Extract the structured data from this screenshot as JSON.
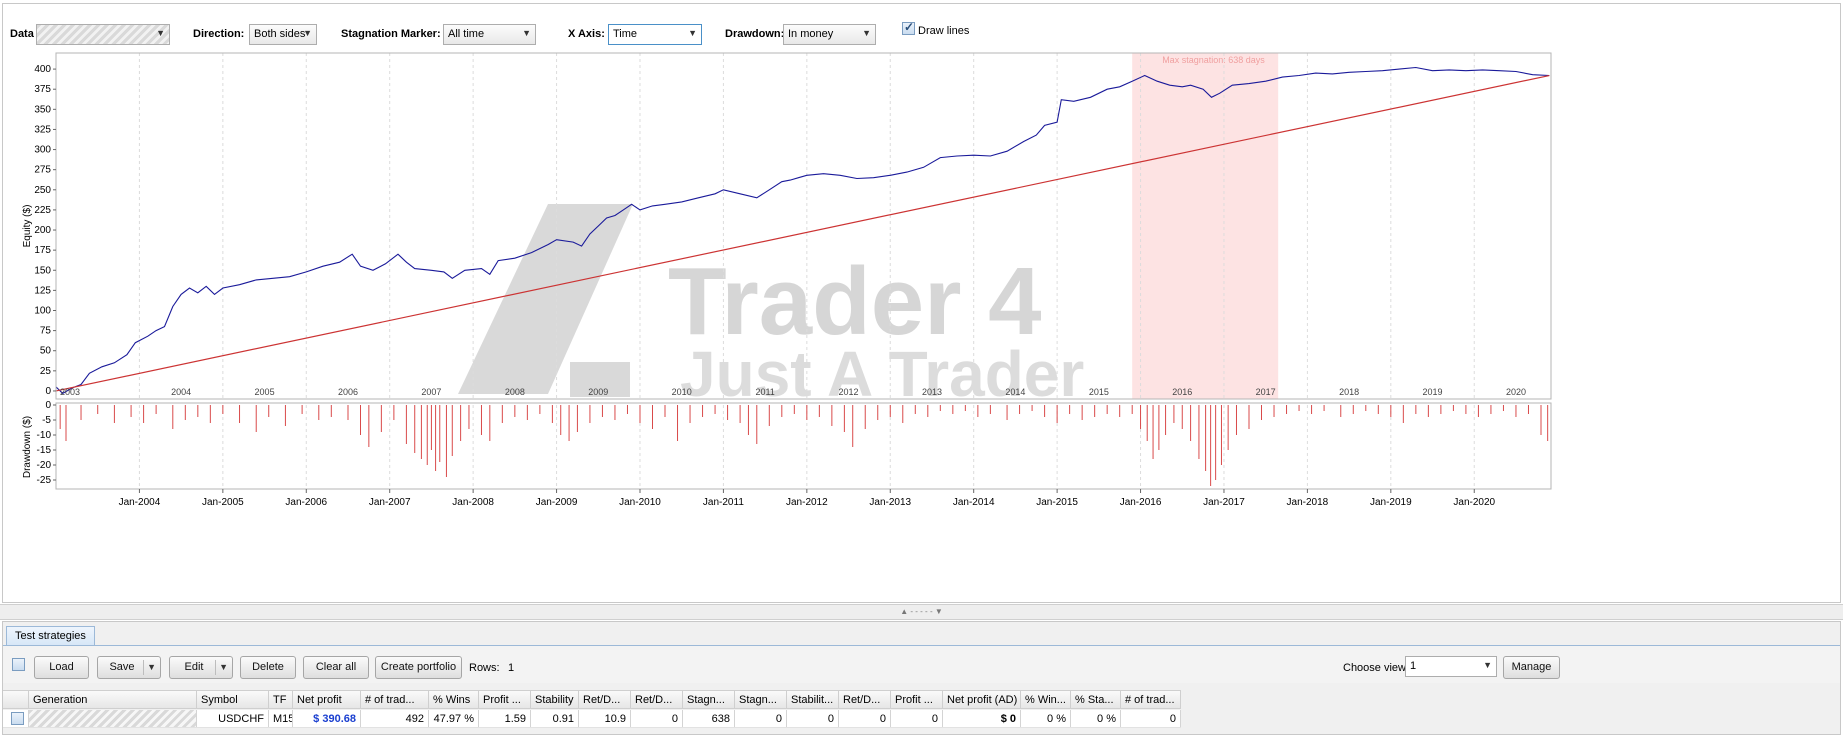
{
  "controls": {
    "data_label": "Data",
    "direction_label": "Direction:",
    "direction_value": "Both sides",
    "stagnation_label": "Stagnation Marker:",
    "stagnation_value": "All time",
    "xaxis_label": "X Axis:",
    "xaxis_value": "Time",
    "drawdown_label": "Drawdown:",
    "drawdown_value": "In money",
    "draw_lines_label": "Draw lines",
    "draw_lines_checked": true
  },
  "watermark": {
    "line1": "Trader 4",
    "line2": "Just A Trader"
  },
  "chart_data": [
    {
      "type": "line",
      "ylabel": "Equity ($)",
      "ylim": [
        -10,
        420
      ],
      "yticks": [
        0,
        25,
        50,
        75,
        100,
        125,
        150,
        175,
        200,
        225,
        250,
        275,
        300,
        325,
        350,
        375,
        400
      ],
      "year_labels": [
        "2003",
        "2004",
        "2005",
        "2006",
        "2007",
        "2008",
        "2009",
        "2010",
        "2011",
        "2012",
        "2013",
        "2014",
        "2015",
        "2016",
        "2017",
        "2018",
        "2019",
        "2020"
      ],
      "stagnation_label": "Max stagnation: 638 days",
      "stagnation_range": [
        2015.9,
        2017.65
      ],
      "series": [
        {
          "values": [
            [
              2003.0,
              5
            ],
            [
              2003.08,
              -3
            ],
            [
              2003.2,
              4
            ],
            [
              2003.3,
              8
            ],
            [
              2003.4,
              22
            ],
            [
              2003.55,
              30
            ],
            [
              2003.7,
              35
            ],
            [
              2003.85,
              45
            ],
            [
              2003.95,
              60
            ],
            [
              2004.1,
              68
            ],
            [
              2004.2,
              75
            ],
            [
              2004.3,
              80
            ],
            [
              2004.4,
              105
            ],
            [
              2004.5,
              120
            ],
            [
              2004.6,
              128
            ],
            [
              2004.7,
              122
            ],
            [
              2004.8,
              130
            ],
            [
              2004.9,
              120
            ],
            [
              2005.0,
              128
            ],
            [
              2005.2,
              132
            ],
            [
              2005.4,
              138
            ],
            [
              2005.6,
              140
            ],
            [
              2005.8,
              142
            ],
            [
              2006.0,
              148
            ],
            [
              2006.2,
              155
            ],
            [
              2006.4,
              160
            ],
            [
              2006.55,
              170
            ],
            [
              2006.65,
              155
            ],
            [
              2006.8,
              150
            ],
            [
              2006.95,
              158
            ],
            [
              2007.1,
              170
            ],
            [
              2007.2,
              160
            ],
            [
              2007.3,
              152
            ],
            [
              2007.5,
              150
            ],
            [
              2007.65,
              148
            ],
            [
              2007.75,
              140
            ],
            [
              2007.9,
              150
            ],
            [
              2008.1,
              152
            ],
            [
              2008.2,
              145
            ],
            [
              2008.3,
              162
            ],
            [
              2008.5,
              165
            ],
            [
              2008.7,
              172
            ],
            [
              2008.9,
              182
            ],
            [
              2009.0,
              188
            ],
            [
              2009.2,
              185
            ],
            [
              2009.3,
              180
            ],
            [
              2009.4,
              195
            ],
            [
              2009.5,
              205
            ],
            [
              2009.6,
              215
            ],
            [
              2009.7,
              218
            ],
            [
              2009.8,
              225
            ],
            [
              2009.9,
              232
            ],
            [
              2010.0,
              225
            ],
            [
              2010.15,
              230
            ],
            [
              2010.3,
              232
            ],
            [
              2010.5,
              235
            ],
            [
              2010.7,
              240
            ],
            [
              2010.9,
              245
            ],
            [
              2011.0,
              250
            ],
            [
              2011.2,
              245
            ],
            [
              2011.4,
              240
            ],
            [
              2011.55,
              250
            ],
            [
              2011.7,
              260
            ],
            [
              2011.8,
              262
            ],
            [
              2011.9,
              265
            ],
            [
              2012.0,
              268
            ],
            [
              2012.2,
              270
            ],
            [
              2012.4,
              268
            ],
            [
              2012.6,
              264
            ],
            [
              2012.8,
              265
            ],
            [
              2013.0,
              268
            ],
            [
              2013.2,
              272
            ],
            [
              2013.4,
              278
            ],
            [
              2013.6,
              290
            ],
            [
              2013.8,
              292
            ],
            [
              2014.0,
              293
            ],
            [
              2014.2,
              292
            ],
            [
              2014.4,
              298
            ],
            [
              2014.6,
              310
            ],
            [
              2014.75,
              318
            ],
            [
              2014.85,
              330
            ],
            [
              2015.0,
              334
            ],
            [
              2015.05,
              362
            ],
            [
              2015.2,
              360
            ],
            [
              2015.4,
              365
            ],
            [
              2015.6,
              375
            ],
            [
              2015.75,
              378
            ],
            [
              2015.9,
              385
            ],
            [
              2016.05,
              392
            ],
            [
              2016.2,
              385
            ],
            [
              2016.35,
              380
            ],
            [
              2016.5,
              378
            ],
            [
              2016.6,
              380
            ],
            [
              2016.75,
              375
            ],
            [
              2016.85,
              365
            ],
            [
              2016.95,
              370
            ],
            [
              2017.1,
              380
            ],
            [
              2017.3,
              382
            ],
            [
              2017.5,
              385
            ],
            [
              2017.7,
              390
            ],
            [
              2017.9,
              392
            ],
            [
              2018.1,
              395
            ],
            [
              2018.3,
              394
            ],
            [
              2018.5,
              396
            ],
            [
              2018.7,
              397
            ],
            [
              2018.9,
              398
            ],
            [
              2019.1,
              400
            ],
            [
              2019.3,
              402
            ],
            [
              2019.5,
              398
            ],
            [
              2019.7,
              399
            ],
            [
              2019.9,
              398
            ],
            [
              2020.1,
              399
            ],
            [
              2020.3,
              398
            ],
            [
              2020.5,
              397
            ],
            [
              2020.7,
              393
            ],
            [
              2020.9,
              392
            ]
          ]
        },
        {
          "values": [
            [
              2003.0,
              0
            ],
            [
              2020.9,
              392
            ]
          ]
        }
      ]
    },
    {
      "type": "bar",
      "ylabel": "Drawdown ($)",
      "ylim": [
        -28,
        0
      ],
      "yticks": [
        0,
        -5,
        -10,
        -15,
        -20,
        -25
      ],
      "xticks": [
        "Jan-2004",
        "Jan-2005",
        "Jan-2006",
        "Jan-2007",
        "Jan-2008",
        "Jan-2009",
        "Jan-2010",
        "Jan-2011",
        "Jan-2012",
        "Jan-2013",
        "Jan-2014",
        "Jan-2015",
        "Jan-2016",
        "Jan-2017",
        "Jan-2018",
        "Jan-2019",
        "Jan-2020"
      ],
      "values": [
        [
          2003.05,
          -8
        ],
        [
          2003.12,
          -12
        ],
        [
          2003.3,
          -5
        ],
        [
          2003.5,
          -3
        ],
        [
          2003.7,
          -6
        ],
        [
          2003.9,
          -4
        ],
        [
          2004.05,
          -6
        ],
        [
          2004.2,
          -3
        ],
        [
          2004.4,
          -8
        ],
        [
          2004.55,
          -5
        ],
        [
          2004.7,
          -4
        ],
        [
          2004.85,
          -6
        ],
        [
          2005.0,
          -3
        ],
        [
          2005.2,
          -6
        ],
        [
          2005.4,
          -9
        ],
        [
          2005.55,
          -4
        ],
        [
          2005.75,
          -7
        ],
        [
          2005.95,
          -3
        ],
        [
          2006.15,
          -5
        ],
        [
          2006.3,
          -4
        ],
        [
          2006.5,
          -5
        ],
        [
          2006.65,
          -10
        ],
        [
          2006.75,
          -14
        ],
        [
          2006.9,
          -9
        ],
        [
          2007.05,
          -5
        ],
        [
          2007.2,
          -13
        ],
        [
          2007.3,
          -16
        ],
        [
          2007.38,
          -18
        ],
        [
          2007.45,
          -20
        ],
        [
          2007.5,
          -15
        ],
        [
          2007.55,
          -22
        ],
        [
          2007.6,
          -19
        ],
        [
          2007.68,
          -24
        ],
        [
          2007.75,
          -17
        ],
        [
          2007.85,
          -12
        ],
        [
          2007.95,
          -8
        ],
        [
          2008.1,
          -10
        ],
        [
          2008.2,
          -12
        ],
        [
          2008.35,
          -6
        ],
        [
          2008.5,
          -4
        ],
        [
          2008.65,
          -5
        ],
        [
          2008.8,
          -3
        ],
        [
          2008.95,
          -6
        ],
        [
          2009.05,
          -10
        ],
        [
          2009.15,
          -12
        ],
        [
          2009.25,
          -9
        ],
        [
          2009.4,
          -6
        ],
        [
          2009.55,
          -4
        ],
        [
          2009.7,
          -5
        ],
        [
          2009.85,
          -3
        ],
        [
          2010.0,
          -6
        ],
        [
          2010.15,
          -8
        ],
        [
          2010.3,
          -4
        ],
        [
          2010.45,
          -12
        ],
        [
          2010.6,
          -6
        ],
        [
          2010.75,
          -4
        ],
        [
          2010.9,
          -3
        ],
        [
          2011.05,
          -5
        ],
        [
          2011.2,
          -6
        ],
        [
          2011.3,
          -10
        ],
        [
          2011.4,
          -13
        ],
        [
          2011.55,
          -7
        ],
        [
          2011.7,
          -4
        ],
        [
          2011.85,
          -3
        ],
        [
          2012.0,
          -5
        ],
        [
          2012.15,
          -4
        ],
        [
          2012.3,
          -7
        ],
        [
          2012.45,
          -9
        ],
        [
          2012.55,
          -14
        ],
        [
          2012.7,
          -8
        ],
        [
          2012.85,
          -5
        ],
        [
          2013.0,
          -4
        ],
        [
          2013.15,
          -6
        ],
        [
          2013.3,
          -3
        ],
        [
          2013.45,
          -4
        ],
        [
          2013.6,
          -2
        ],
        [
          2013.75,
          -3
        ],
        [
          2013.9,
          -2
        ],
        [
          2014.05,
          -4
        ],
        [
          2014.2,
          -3
        ],
        [
          2014.4,
          -5
        ],
        [
          2014.55,
          -3
        ],
        [
          2014.7,
          -2
        ],
        [
          2014.85,
          -4
        ],
        [
          2015.0,
          -6
        ],
        [
          2015.15,
          -3
        ],
        [
          2015.3,
          -5
        ],
        [
          2015.45,
          -4
        ],
        [
          2015.6,
          -3
        ],
        [
          2015.75,
          -4
        ],
        [
          2015.9,
          -3
        ],
        [
          2016.0,
          -8
        ],
        [
          2016.08,
          -12
        ],
        [
          2016.15,
          -18
        ],
        [
          2016.22,
          -15
        ],
        [
          2016.3,
          -10
        ],
        [
          2016.4,
          -6
        ],
        [
          2016.5,
          -8
        ],
        [
          2016.6,
          -12
        ],
        [
          2016.7,
          -18
        ],
        [
          2016.78,
          -22
        ],
        [
          2016.84,
          -27
        ],
        [
          2016.9,
          -25
        ],
        [
          2016.97,
          -20
        ],
        [
          2017.05,
          -15
        ],
        [
          2017.15,
          -10
        ],
        [
          2017.3,
          -8
        ],
        [
          2017.45,
          -5
        ],
        [
          2017.6,
          -4
        ],
        [
          2017.75,
          -3
        ],
        [
          2017.9,
          -2
        ],
        [
          2018.05,
          -3
        ],
        [
          2018.2,
          -2
        ],
        [
          2018.4,
          -4
        ],
        [
          2018.55,
          -3
        ],
        [
          2018.7,
          -2
        ],
        [
          2018.85,
          -3
        ],
        [
          2019.0,
          -4
        ],
        [
          2019.15,
          -6
        ],
        [
          2019.3,
          -3
        ],
        [
          2019.45,
          -4
        ],
        [
          2019.6,
          -3
        ],
        [
          2019.75,
          -2
        ],
        [
          2019.9,
          -3
        ],
        [
          2020.05,
          -4
        ],
        [
          2020.2,
          -3
        ],
        [
          2020.35,
          -2
        ],
        [
          2020.5,
          -4
        ],
        [
          2020.65,
          -3
        ],
        [
          2020.8,
          -10
        ],
        [
          2020.88,
          -12
        ]
      ]
    }
  ],
  "bottom": {
    "tab_label": "Test strategies",
    "buttons": {
      "load": "Load",
      "save": "Save",
      "edit": "Edit",
      "delete": "Delete",
      "clear_all": "Clear all",
      "create_portfolio": "Create portfolio",
      "manage": "Manage"
    },
    "rows_label": "Rows:",
    "rows_value": "1",
    "choose_view_label": "Choose view",
    "choose_view_value": "1",
    "columns": [
      "Generation",
      "Symbol",
      "TF",
      "Net profit",
      "# of trad...",
      "% Wins",
      "Profit ...",
      "Stability",
      "Ret/D...",
      "Ret/D...",
      "Stagn...",
      "Stagn...",
      "Stabilit...",
      "Ret/D...",
      "Profit ...",
      "Net profit (AD)",
      "% Win...",
      "% Sta...",
      "# of trad..."
    ],
    "row": [
      "",
      "USDCHF",
      "M15",
      "$ 390.68",
      "492",
      "47.97 %",
      "1.59",
      "0.91",
      "10.9",
      "0",
      "638",
      "0",
      "0",
      "0",
      "0",
      "$ 0",
      "0 %",
      "0 %",
      "0"
    ]
  }
}
